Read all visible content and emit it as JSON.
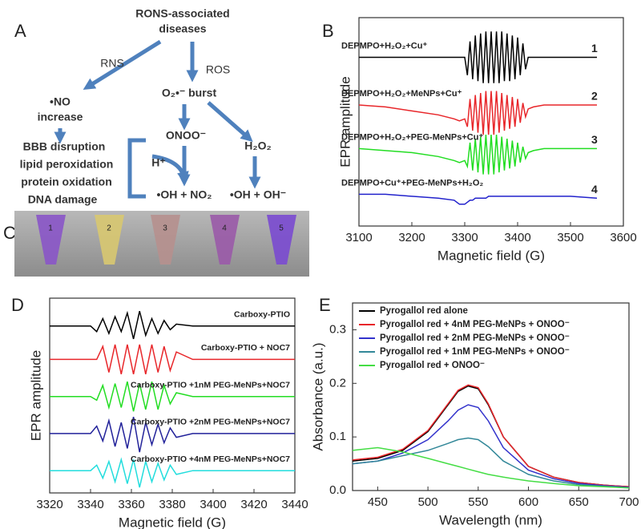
{
  "panels": [
    "A",
    "B",
    "C",
    "D",
    "E"
  ],
  "diagram": {
    "top": [
      "RONS-associated",
      "diseases"
    ],
    "rns": "RNS",
    "ros": "ROS",
    "burst": "O₂•⁻ burst",
    "no": [
      "•NO",
      "increase"
    ],
    "onoo": "ONOO⁻",
    "h2o2": "H₂O₂",
    "h": "H⁺",
    "effects": [
      "BBB disruption",
      "lipid peroxidation",
      "protein oxidation",
      "DNA damage"
    ],
    "oh_no2": "•OH + NO₂",
    "oh_oh": "•OH + OH⁻"
  },
  "photo": {
    "tube_labels": [
      "1",
      "2",
      "3",
      "4",
      "5"
    ]
  },
  "chart_data": [
    {
      "type": "line",
      "xlabel": "Magnetic field (G)",
      "ylabel": "EPR amplitude",
      "legend": "inline",
      "annotations": [
        "1",
        "2",
        "3",
        "4"
      ],
      "x": [
        3100,
        3150,
        3200,
        3250,
        3280,
        3290,
        3300,
        3305,
        3310,
        3315,
        3320,
        3325,
        3330,
        3335,
        3340,
        3345,
        3350,
        3355,
        3360,
        3365,
        3370,
        3375,
        3380,
        3385,
        3390,
        3395,
        3400,
        3405,
        3410,
        3415,
        3420,
        3430,
        3450,
        3500,
        3550
      ],
      "xlim": [
        3100,
        3600
      ],
      "xticks": [
        3100,
        3200,
        3300,
        3400,
        3500,
        3600
      ],
      "ylim": [
        0,
        10.5
      ],
      "series": [
        {
          "name": "DEPMPO+H₂O₂+Cu⁺",
          "color": "#000000",
          "values": [
            8.5,
            8.5,
            8.5,
            8.5,
            8.5,
            8.5,
            8.5,
            7.6,
            9.3,
            7.4,
            9.6,
            7.3,
            9.7,
            7.2,
            9.8,
            7.2,
            9.8,
            7.2,
            9.8,
            7.2,
            9.8,
            7.3,
            9.7,
            7.3,
            9.6,
            7.4,
            9.5,
            7.6,
            9.2,
            7.9,
            8.5,
            8.5,
            8.5,
            8.5,
            8.5
          ]
        },
        {
          "name": "DEPMPO+H₂O₂+MeNPs+Cu⁺",
          "color": "#e8262a",
          "values": [
            6.1,
            6.0,
            5.8,
            5.6,
            5.4,
            5.3,
            5.4,
            5.0,
            6.4,
            4.8,
            6.6,
            4.7,
            6.7,
            4.6,
            6.8,
            4.6,
            6.8,
            4.6,
            6.8,
            4.7,
            6.7,
            4.8,
            6.6,
            4.9,
            6.5,
            5.0,
            6.4,
            5.2,
            6.2,
            5.5,
            5.9,
            6.0,
            6.1,
            6.1,
            6.1
          ]
        },
        {
          "name": "DEPMPO+H₂O₂+PEG-MeNPs+Cu⁺",
          "color": "#22dd22",
          "values": [
            3.9,
            3.8,
            3.7,
            3.5,
            3.3,
            3.2,
            3.3,
            3.0,
            4.2,
            2.8,
            4.4,
            2.7,
            4.5,
            2.6,
            4.6,
            2.6,
            4.6,
            2.6,
            4.6,
            2.7,
            4.5,
            2.8,
            4.4,
            2.9,
            4.3,
            3.0,
            4.2,
            3.2,
            4.0,
            3.4,
            3.7,
            3.8,
            3.9,
            3.9,
            3.9
          ]
        },
        {
          "name": "DEPMPO+Cu⁺+PEG-MeNPs+H₂O₂",
          "color": "#2222cc",
          "values": [
            1.6,
            1.6,
            1.5,
            1.4,
            1.3,
            1.1,
            1.1,
            1.2,
            1.3,
            1.3,
            1.4,
            1.4,
            1.4,
            1.4,
            1.4,
            1.5,
            1.5,
            1.5,
            1.5,
            1.5,
            1.5,
            1.5,
            1.5,
            1.5,
            1.5,
            1.5,
            1.5,
            1.5,
            1.5,
            1.5,
            1.5,
            1.5,
            1.5,
            1.5,
            1.4
          ]
        }
      ]
    },
    {
      "type": "line",
      "xlabel": "Magnetic field (G)",
      "ylabel": "EPR amplitude",
      "legend": "inline",
      "x": [
        3320,
        3330,
        3340,
        3343,
        3346,
        3349,
        3352,
        3355,
        3358,
        3361,
        3364,
        3367,
        3370,
        3373,
        3376,
        3379,
        3382,
        3390,
        3400,
        3420,
        3440
      ],
      "xlim": [
        3320,
        3440
      ],
      "xticks": [
        3320,
        3340,
        3360,
        3380,
        3400,
        3420,
        3440
      ],
      "ylim": [
        0,
        10.5
      ],
      "series": [
        {
          "name": "Carboxy-PTIO",
          "color": "#000000",
          "values": [
            9,
            9,
            9,
            8.7,
            9.4,
            8.6,
            9.5,
            8.7,
            9.7,
            8.3,
            9.8,
            8.5,
            9.4,
            8.6,
            9.3,
            8.8,
            9.1,
            9,
            9,
            9,
            9
          ]
        },
        {
          "name": "Carboxy-PTIO + NOC7",
          "color": "#e8262a",
          "values": [
            7.2,
            7.2,
            7.2,
            7.2,
            7.9,
            6.5,
            8.0,
            6.4,
            8.0,
            6.4,
            8.0,
            6.4,
            8.0,
            6.5,
            7.9,
            6.6,
            7.6,
            7.2,
            7.2,
            7.2,
            7.2
          ]
        },
        {
          "name": "Carboxy-PTIO +1nM PEG-MeNPs+NOC7",
          "color": "#22dd22",
          "values": [
            5.2,
            5.2,
            5.2,
            5.0,
            5.8,
            4.6,
            5.9,
            4.6,
            6.0,
            4.4,
            5.9,
            4.5,
            6.0,
            4.5,
            5.8,
            4.8,
            5.4,
            5.2,
            5.2,
            5.2,
            5.2
          ]
        },
        {
          "name": "Carboxy-PTIO +2nM PEG-MeNPs+NOC7",
          "color": "#22229a",
          "values": [
            3.2,
            3.2,
            3.2,
            3.6,
            2.8,
            3.9,
            2.5,
            3.8,
            2.4,
            4.1,
            2.2,
            3.8,
            2.6,
            3.7,
            2.7,
            3.5,
            3.0,
            3.2,
            3.2,
            3.2,
            3.2
          ]
        },
        {
          "name": "Carboxy-PTIO +4nM PEG-MeNPs+NOC7",
          "color": "#22dddd",
          "values": [
            1.2,
            1.2,
            1.2,
            1.5,
            0.8,
            1.7,
            0.6,
            1.8,
            0.5,
            1.8,
            0.3,
            1.7,
            0.6,
            1.6,
            0.7,
            1.5,
            1.0,
            1.2,
            1.2,
            1.2,
            1.2
          ]
        }
      ]
    },
    {
      "type": "line",
      "xlabel": "Wavelength (nm)",
      "ylabel": "Absorbance (a.u.)",
      "legend": "top-left",
      "x": [
        425,
        450,
        475,
        500,
        520,
        530,
        540,
        550,
        560,
        575,
        600,
        625,
        650,
        675,
        700
      ],
      "xlim": [
        425,
        700
      ],
      "xticks": [
        450,
        500,
        550,
        600,
        650,
        700
      ],
      "ylim": [
        0,
        0.35
      ],
      "yticks": [
        {
          "value": 0,
          "label": "0.0"
        },
        0.1,
        0.2,
        0.3
      ],
      "series": [
        {
          "name": "Pyrogallol red alone",
          "color": "#000000",
          "values": [
            0.055,
            0.06,
            0.075,
            0.11,
            0.16,
            0.185,
            0.195,
            0.19,
            0.16,
            0.1,
            0.045,
            0.025,
            0.015,
            0.01,
            0.007
          ]
        },
        {
          "name": "Pyrogallol red + 4nM PEG-MeNPs + ONOO⁻",
          "color": "#e8262a",
          "values": [
            0.057,
            0.062,
            0.077,
            0.112,
            0.162,
            0.187,
            0.197,
            0.192,
            0.162,
            0.1,
            0.045,
            0.025,
            0.015,
            0.01,
            0.007
          ]
        },
        {
          "name": "Pyrogallol red + 2nM PEG-MeNPs + ONOO⁻",
          "color": "#3333cc",
          "values": [
            0.05,
            0.055,
            0.07,
            0.095,
            0.13,
            0.15,
            0.16,
            0.155,
            0.13,
            0.08,
            0.038,
            0.022,
            0.013,
            0.009,
            0.006
          ]
        },
        {
          "name": "Pyrogallol red + 1nM PEG-MeNPs + ONOO⁻",
          "color": "#338899",
          "values": [
            0.05,
            0.055,
            0.065,
            0.075,
            0.088,
            0.095,
            0.098,
            0.095,
            0.082,
            0.055,
            0.03,
            0.018,
            0.011,
            0.008,
            0.005
          ]
        },
        {
          "name": "Pyrogallol red + ONOO⁻",
          "color": "#44dd44",
          "values": [
            0.075,
            0.08,
            0.072,
            0.06,
            0.05,
            0.045,
            0.04,
            0.035,
            0.03,
            0.025,
            0.018,
            0.013,
            0.009,
            0.007,
            0.005
          ]
        }
      ]
    }
  ]
}
